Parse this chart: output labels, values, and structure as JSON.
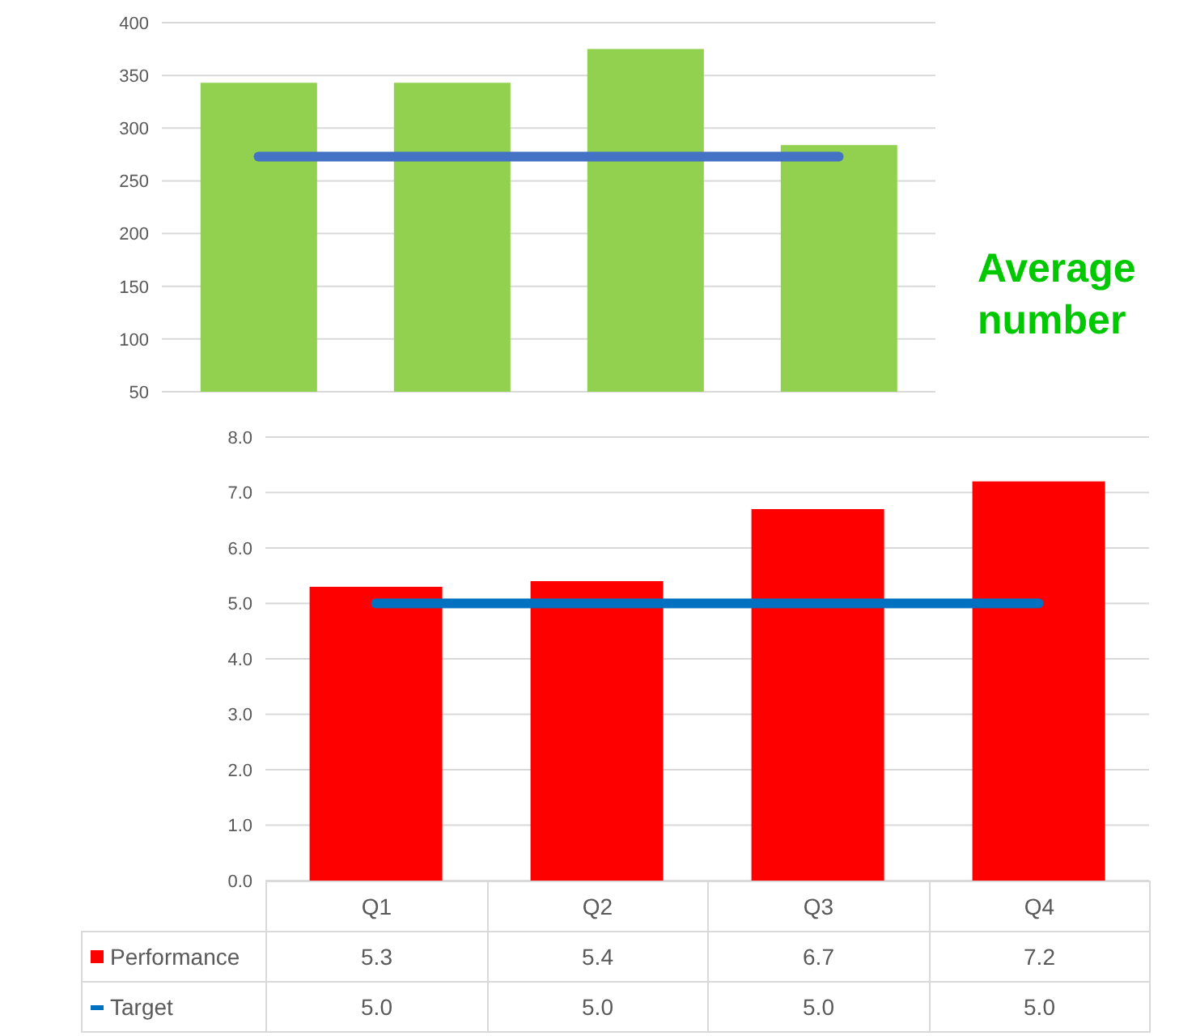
{
  "chart_data": [
    {
      "type": "bar",
      "categories": [
        null,
        null,
        null,
        null
      ],
      "series": [
        {
          "color": "#92d050",
          "values": [
            343,
            343,
            375,
            284
          ]
        },
        {
          "type": "line",
          "color": "#4472c4",
          "values": [
            273,
            273,
            273,
            273
          ]
        }
      ],
      "ylim": [
        50,
        400
      ],
      "yticks": [
        50,
        100,
        150,
        200,
        250,
        300,
        350,
        400
      ],
      "grid": "y",
      "tick_labels": "y",
      "marker": "none",
      "annotations": [
        "Average number"
      ]
    },
    {
      "type": "bar",
      "categories": [
        "Q1",
        "Q2",
        "Q3",
        "Q4"
      ],
      "series": [
        {
          "name": "Performance",
          "color": "#ff0000",
          "values": [
            5.3,
            5.4,
            6.7,
            7.2
          ],
          "value_labels": [
            "5.3",
            "5.4",
            "6.7",
            "7.2"
          ]
        },
        {
          "type": "line",
          "name": "Target",
          "color": "#0070c0",
          "values": [
            5.0,
            5.0,
            5.0,
            5.0
          ],
          "value_labels": [
            "5.0",
            "5.0",
            "5.0",
            "5.0"
          ]
        }
      ],
      "ylim": [
        0,
        8
      ],
      "yticks": [
        {
          "value": 0,
          "label": "0.0"
        },
        {
          "value": 1,
          "label": "1.0"
        },
        {
          "value": 2,
          "label": "2.0"
        },
        {
          "value": 3,
          "label": "3.0"
        },
        {
          "value": 4,
          "label": "4.0"
        },
        {
          "value": 5,
          "label": "5.0"
        },
        {
          "value": 6,
          "label": "6.0"
        },
        {
          "value": 7,
          "label": "7.0"
        },
        {
          "value": 8,
          "label": "8.0"
        }
      ],
      "grid": "y",
      "marker": "none",
      "legend": "bottom"
    }
  ]
}
